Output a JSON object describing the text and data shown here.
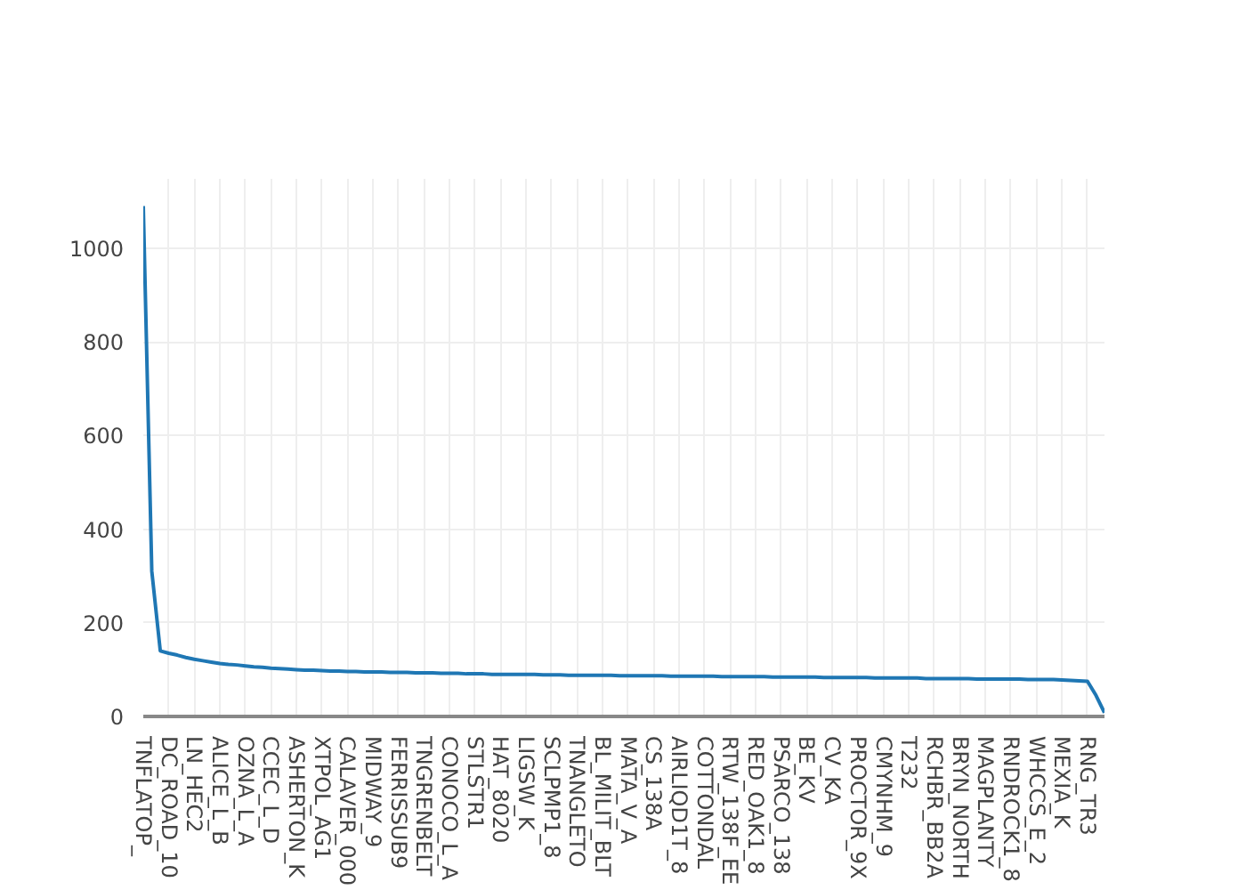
{
  "chart_data": {
    "type": "line",
    "categories": [
      "TNFLATOP_",
      null,
      null,
      "DC_ROAD_10",
      null,
      null,
      "LN_HEC2",
      null,
      null,
      "ALICE_L_B",
      null,
      null,
      "OZNA_L_A",
      null,
      null,
      "CCEC_L_D",
      null,
      null,
      "ASHERTON_K",
      null,
      null,
      "XTPOL_AG1",
      null,
      null,
      "CALAVER_000",
      null,
      null,
      "MIDWAY_9",
      null,
      null,
      "FERRISSUB9",
      null,
      null,
      "TNGRENBELT",
      null,
      null,
      "CONOCO_L_A",
      null,
      null,
      "STLSTR1",
      null,
      null,
      "HAT_8020",
      null,
      null,
      "LIGSW_K",
      null,
      null,
      "SCLPMP1_8",
      null,
      null,
      "TNANGLETO",
      null,
      null,
      "BL_MILIT_BLT",
      null,
      null,
      "MATA_V_A",
      null,
      null,
      "CS_138A",
      null,
      null,
      "AIRLIQD1T_8",
      null,
      null,
      "COTTONDAL",
      null,
      null,
      "RTW_138F_EE",
      null,
      null,
      "RED_OAK1_8",
      null,
      null,
      "PSARCO_138",
      null,
      null,
      "BE_KV",
      null,
      null,
      "CV_KA",
      null,
      null,
      "PROCTOR_9X",
      null,
      null,
      "CMYNHM_9",
      null,
      null,
      "T232",
      null,
      null,
      "RCHBR_BB2A",
      null,
      null,
      "BRYN_NORTH",
      null,
      null,
      "MAGPLANTY",
      null,
      null,
      "RNDROCK1_8",
      null,
      null,
      "WHCCS_E_2",
      null,
      null,
      "MEXIA_K",
      null,
      null,
      "RNG_TR3",
      null,
      null
    ],
    "series": [
      {
        "color": "#1f77b4",
        "values": [
          1090,
          310,
          140,
          135,
          131,
          126,
          122,
          119,
          116,
          113,
          111,
          110,
          108,
          106,
          105,
          103,
          102,
          101,
          100,
          99,
          99,
          98,
          97,
          97,
          96,
          96,
          95,
          95,
          95,
          94,
          94,
          94,
          93,
          93,
          93,
          92,
          92,
          92,
          91,
          91,
          91,
          90,
          90,
          90,
          90,
          90,
          90,
          89,
          89,
          89,
          88,
          88,
          88,
          88,
          88,
          88,
          87,
          87,
          87,
          87,
          87,
          87,
          86,
          86,
          86,
          86,
          86,
          86,
          85,
          85,
          85,
          85,
          85,
          85,
          84,
          84,
          84,
          84,
          84,
          84,
          83,
          83,
          83,
          83,
          83,
          83,
          82,
          82,
          82,
          82,
          82,
          82,
          81,
          81,
          81,
          81,
          81,
          81,
          80,
          80,
          80,
          80,
          80,
          80,
          79,
          79,
          79,
          79,
          78,
          77,
          76,
          75,
          45,
          8
        ]
      }
    ],
    "ylim": [
      0,
      1148
    ],
    "yticks": [
      0,
      200,
      400,
      600,
      800,
      1000
    ],
    "grid": true,
    "marker": "none",
    "line_style": "solid"
  }
}
